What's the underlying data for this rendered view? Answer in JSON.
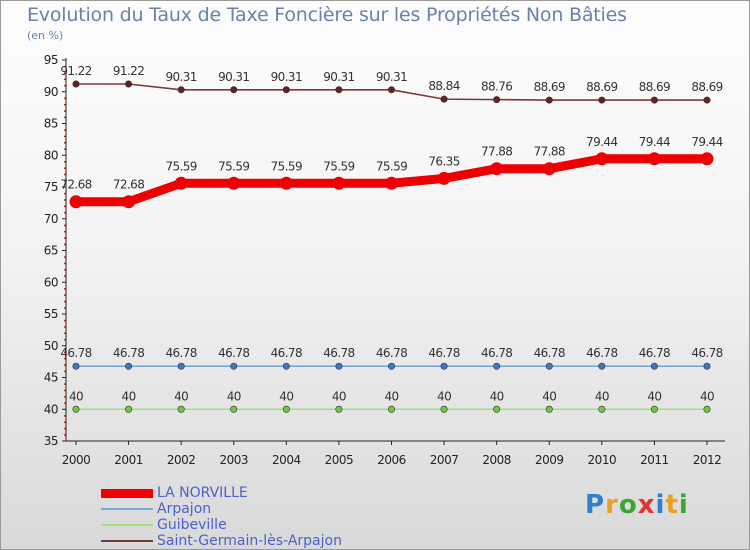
{
  "title": "Evolution du Taux de Taxe Foncière sur les Propriétés Non Bâties",
  "subtitle": "(en %)",
  "logo": {
    "text": "Proxiti",
    "colors": [
      "#2f7fd0",
      "#e8a020",
      "#3aa63a",
      "#e53030",
      "#2f7fd0",
      "#e8a020",
      "#3aa63a"
    ]
  },
  "chart_data": {
    "type": "line",
    "title": "Evolution du Taux de Taxe Foncière sur les Propriétés Non Bâties",
    "ylabel": "(en %)",
    "xlabel": "",
    "ylim": [
      35,
      95
    ],
    "yticks": [
      35,
      40,
      45,
      50,
      55,
      60,
      65,
      70,
      75,
      80,
      85,
      90,
      95
    ],
    "categories": [
      "2000",
      "2001",
      "2002",
      "2003",
      "2004",
      "2005",
      "2006",
      "2007",
      "2008",
      "2009",
      "2010",
      "2011",
      "2012"
    ],
    "grid": false,
    "series": [
      {
        "name": "LA NORVILLE",
        "color": "#ee0000",
        "marker_color": "#ee0000",
        "emphasis": true,
        "values": [
          72.68,
          72.68,
          75.59,
          75.59,
          75.59,
          75.59,
          75.59,
          76.35,
          77.88,
          77.88,
          79.44,
          79.44,
          79.44
        ],
        "labels": [
          "72.68",
          "72.68",
          "75.59",
          "75.59",
          "75.59",
          "75.59",
          "75.59",
          "76.35",
          "77.88",
          "77.88",
          "79.44",
          "79.44",
          "79.44"
        ]
      },
      {
        "name": "Arpajon",
        "color": "#7aa8d8",
        "marker_color": "#3a78c0",
        "emphasis": false,
        "values": [
          46.78,
          46.78,
          46.78,
          46.78,
          46.78,
          46.78,
          46.78,
          46.78,
          46.78,
          46.78,
          46.78,
          46.78,
          46.78
        ],
        "labels": [
          "46.78",
          "46.78",
          "46.78",
          "46.78",
          "46.78",
          "46.78",
          "46.78",
          "46.78",
          "46.78",
          "46.78",
          "46.78",
          "46.78",
          "46.78"
        ]
      },
      {
        "name": "Guibeville",
        "color": "#9fe07a",
        "marker_color": "#6ccc3a",
        "emphasis": false,
        "values": [
          40,
          40,
          40,
          40,
          40,
          40,
          40,
          40,
          40,
          40,
          40,
          40,
          40
        ],
        "labels": [
          "40",
          "40",
          "40",
          "40",
          "40",
          "40",
          "40",
          "40",
          "40",
          "40",
          "40",
          "40",
          "40"
        ]
      },
      {
        "name": "Saint-Germain-lès-Arpajon",
        "color": "#7a3a3a",
        "marker_color": "#6a2020",
        "emphasis": false,
        "values": [
          91.22,
          91.22,
          90.31,
          90.31,
          90.31,
          90.31,
          90.31,
          88.84,
          88.76,
          88.69,
          88.69,
          88.69,
          88.69
        ],
        "labels": [
          "91.22",
          "91.22",
          "90.31",
          "90.31",
          "90.31",
          "90.31",
          "90.31",
          "88.84",
          "88.76",
          "88.69",
          "88.69",
          "88.69",
          "88.69"
        ]
      }
    ]
  }
}
